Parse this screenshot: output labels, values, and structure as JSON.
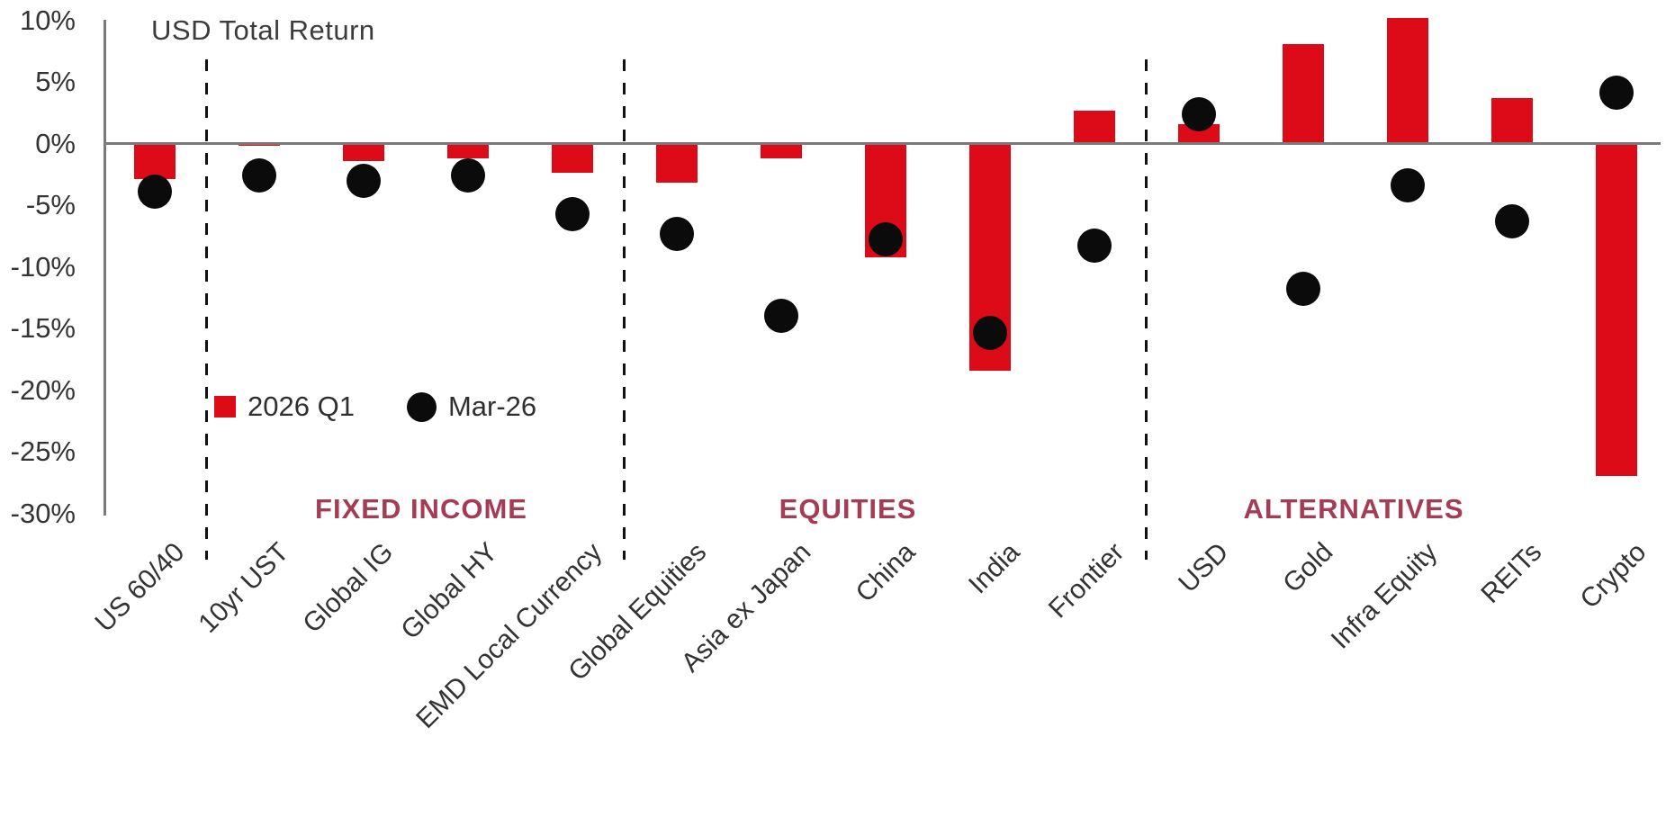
{
  "title": "USD Total Return",
  "legend": {
    "items": [
      {
        "label": "2026 Q1",
        "marker": "square",
        "color": "#DC0B17"
      },
      {
        "label": "Mar-26",
        "marker": "circle",
        "color": "#0b0b0b"
      }
    ]
  },
  "chart_data": {
    "type": "bar+scatter",
    "title": "USD Total Return",
    "categories": [
      "US 60/40",
      "10yr UST",
      "Global IG",
      "Global HY",
      "EMD Local Currency",
      "Global Equities",
      "Asia ex Japan",
      "China",
      "India",
      "Frontier",
      "USD",
      "Gold",
      "Infra Equity",
      "REITs",
      "Crypto"
    ],
    "series": [
      {
        "name": "2026 Q1",
        "type": "bar",
        "color": "#DC0B17",
        "values": [
          -2.9,
          -0.2,
          -1.4,
          -1.2,
          -2.4,
          -3.2,
          -1.2,
          -9.2,
          -18.4,
          2.7,
          1.6,
          8.1,
          10.2,
          3.7,
          -27.0
        ]
      },
      {
        "name": "Mar-26",
        "type": "scatter",
        "color": "#0b0b0b",
        "values": [
          -3.9,
          -2.6,
          -3.0,
          -2.6,
          -5.7,
          -7.3,
          -14.0,
          -7.8,
          -15.4,
          -8.3,
          2.4,
          -11.8,
          -3.4,
          -6.3,
          4.1
        ]
      }
    ],
    "unit": "%",
    "y_axis": {
      "tick_labels": [
        "10%",
        "5%",
        "0%",
        "-5%",
        "-10%",
        "-15%",
        "-20%",
        "-25%",
        "-30%"
      ],
      "tick_values": [
        10,
        5,
        0,
        -5,
        -10,
        -15,
        -20,
        -25,
        -30
      ],
      "ylim": [
        -30,
        10
      ]
    },
    "groups": [
      {
        "label": "FIXED INCOME",
        "first_index": 1,
        "last_index": 4
      },
      {
        "label": "EQUITIES",
        "first_index": 5,
        "last_index": 9
      },
      {
        "label": "ALTERNATIVES",
        "first_index": 10,
        "last_index": 14
      }
    ],
    "separators_after_index": [
      0,
      4,
      9
    ],
    "section_label_color": "#A53C55",
    "grid": false,
    "legend_position": "inside-left"
  }
}
